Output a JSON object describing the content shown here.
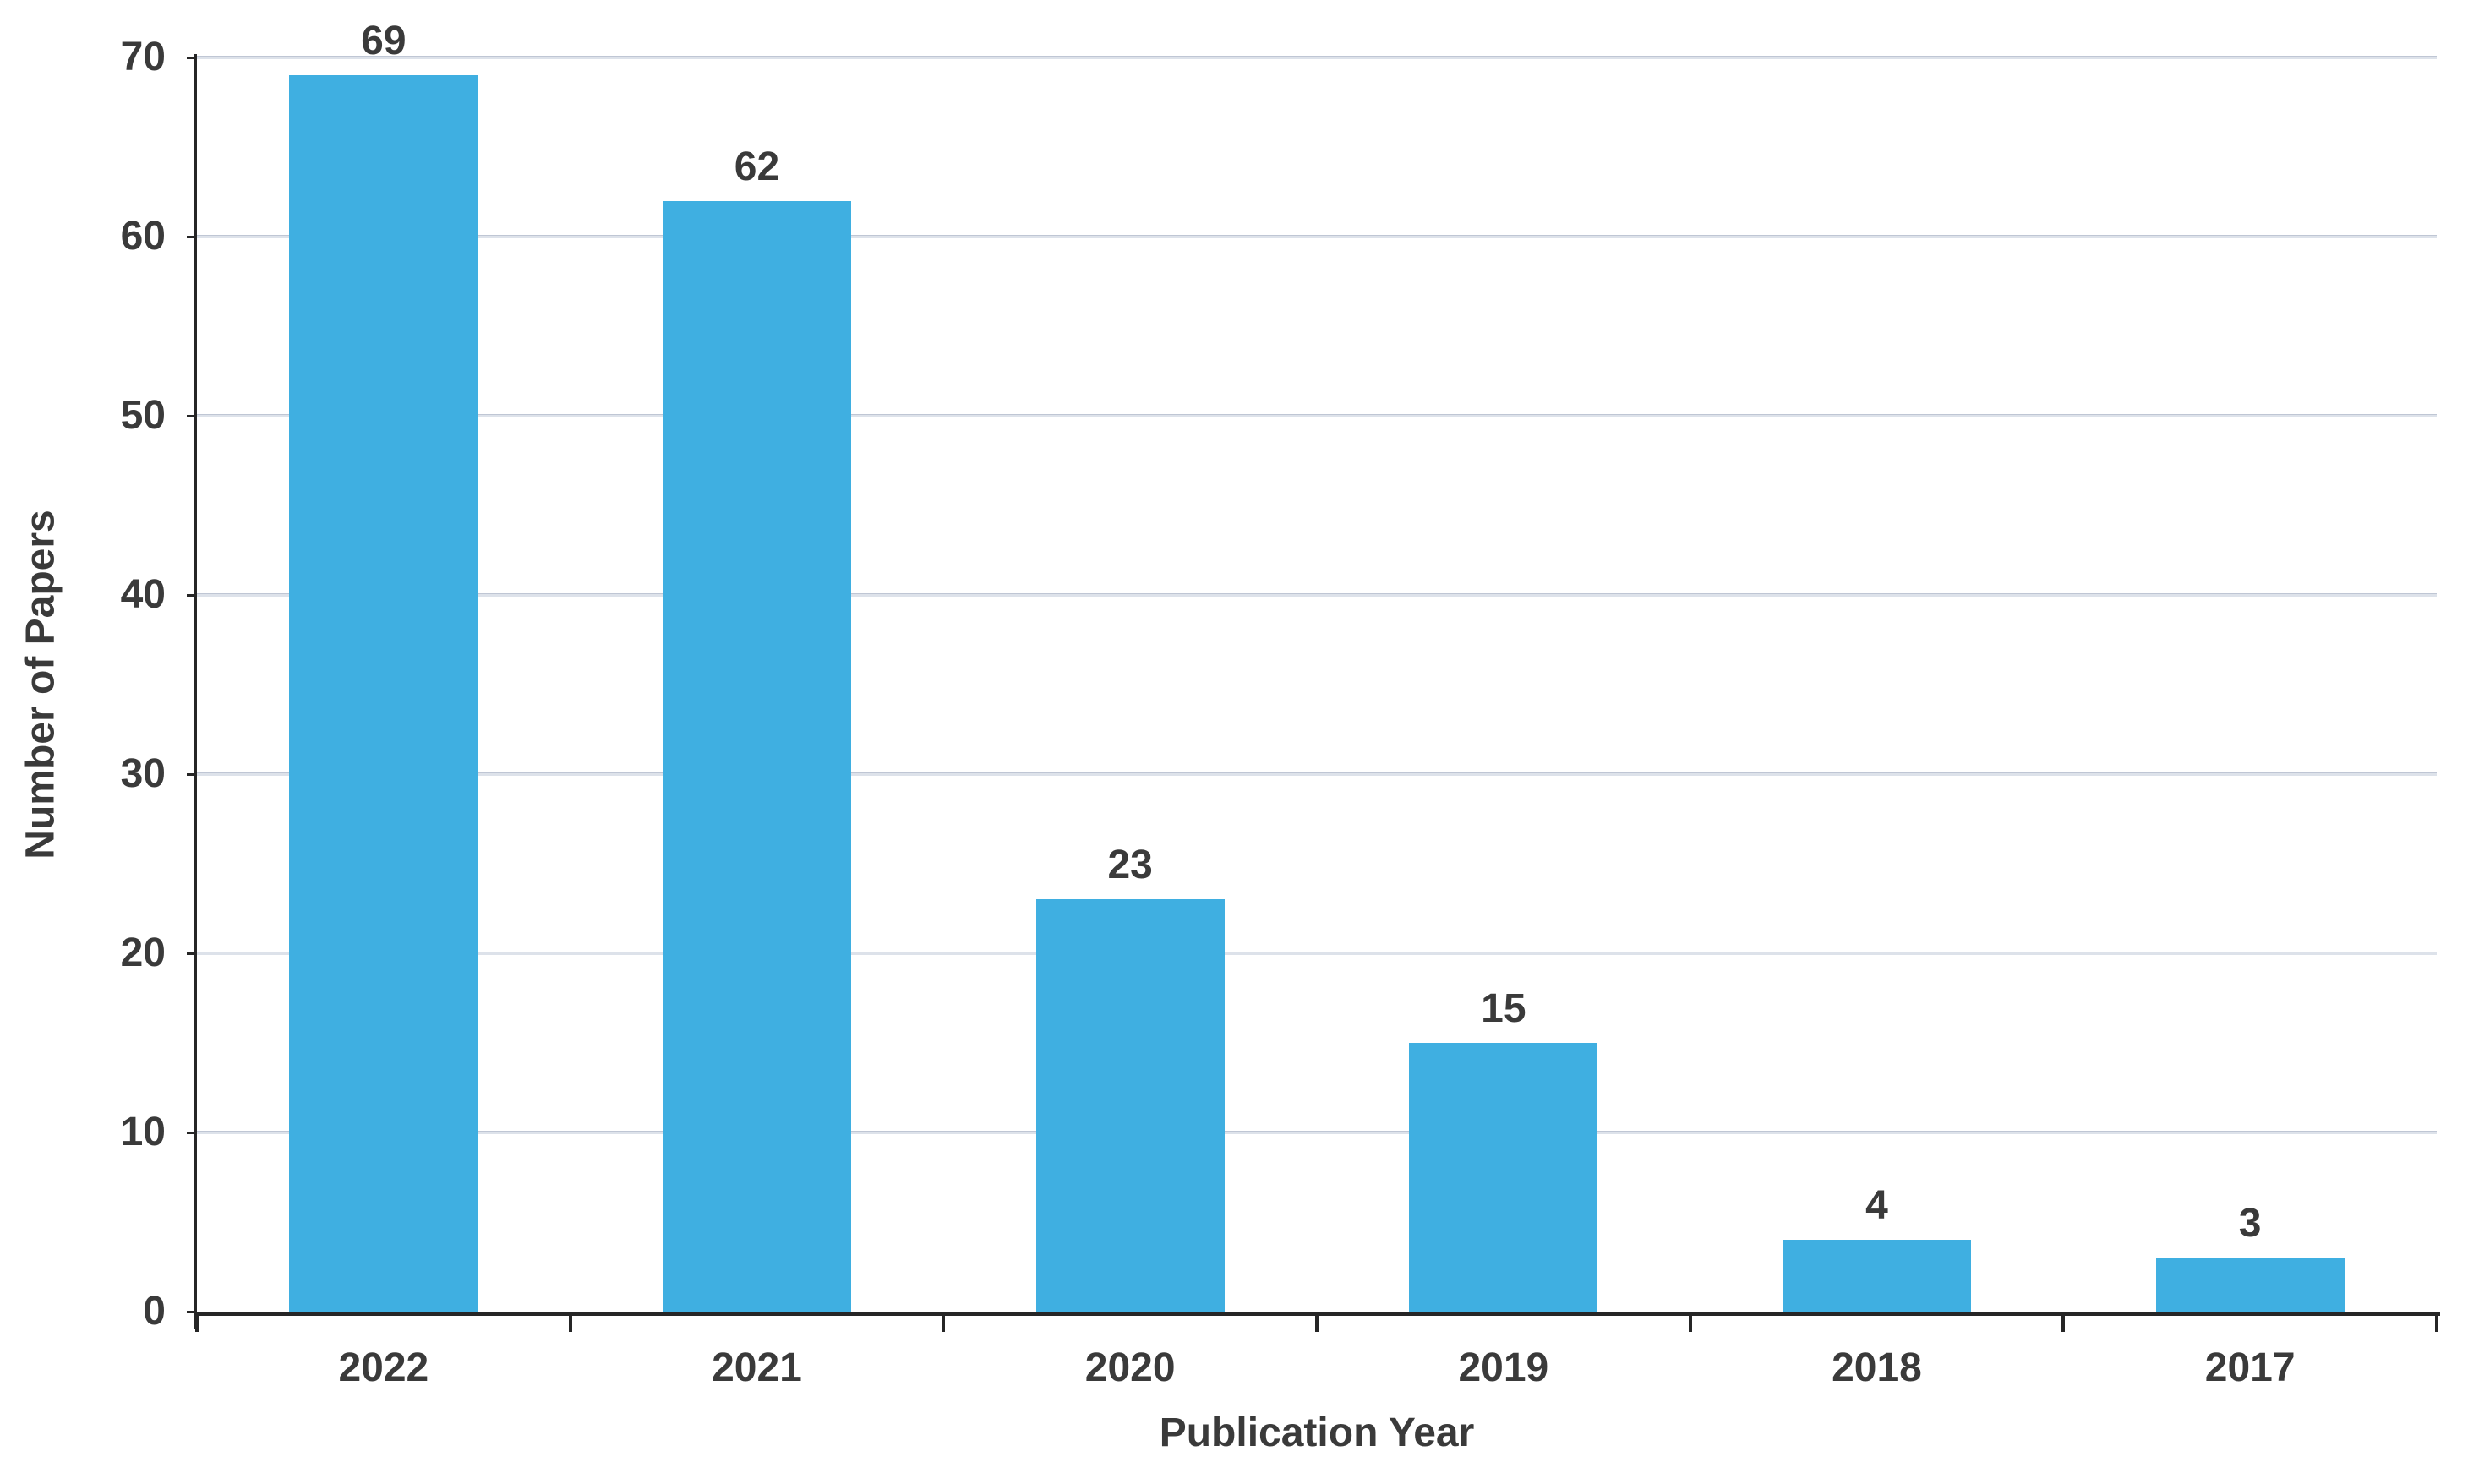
{
  "chart_data": {
    "type": "bar",
    "categories": [
      "2022",
      "2021",
      "2020",
      "2019",
      "2018",
      "2017"
    ],
    "values": [
      69,
      62,
      23,
      15,
      4,
      3
    ],
    "data_labels": [
      "69",
      "62",
      "23",
      "15",
      "4",
      "3"
    ],
    "title": "",
    "xlabel": "Publication Year",
    "ylabel": "Number of Papers",
    "ylim": [
      0,
      70
    ],
    "yticks": [
      0,
      10,
      20,
      30,
      40,
      50,
      60,
      70
    ],
    "grid": "horizontal-only",
    "legend_position": "none",
    "colors": {
      "bar_fill": "#3fafe1",
      "text": "#3a3a3a",
      "axis_line": "#262626",
      "gridline": "#ccd3de",
      "background": "#ffffff"
    }
  }
}
